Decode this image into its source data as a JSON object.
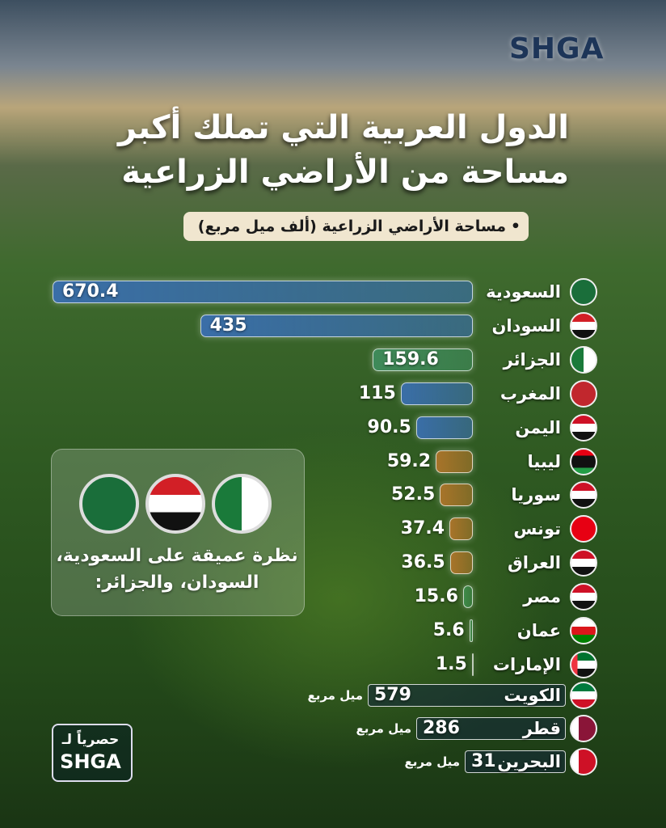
{
  "brand": "SHGA",
  "title": {
    "lines": [
      "الدول العربية التي تملك أكبر",
      "مساحة من الأراضي الزراعية"
    ]
  },
  "chart_data": {
    "type": "bar",
    "orientation": "horizontal",
    "subtitle": "مساحة الأراضي الزراعية (ألف ميل مربع)",
    "categories": [
      "السعودية",
      "السودان",
      "الجزائر",
      "المغرب",
      "اليمن",
      "ليبيا",
      "سوريا",
      "تونس",
      "العراق",
      "مصر",
      "عمان",
      "الإمارات"
    ],
    "values": [
      670.4,
      435,
      159.6,
      115,
      90.5,
      59.2,
      52.5,
      37.4,
      36.5,
      15.6,
      5.6,
      1.5
    ],
    "colors": [
      "#3a6ea8",
      "#3a6ea8",
      "#3f8a5a",
      "#3a6ea8",
      "#3a6ea8",
      "#a8742a",
      "#a8742a",
      "#a8742a",
      "#a8742a",
      "#3f8a4a",
      "#3f8a4a",
      "#3f8a4a"
    ]
  },
  "small_countries": {
    "unit": "ميل مربع",
    "rows": [
      {
        "name": "الكويت",
        "value": 579
      },
      {
        "name": "قطر",
        "value": 286
      },
      {
        "name": "البحرين",
        "value": 31
      }
    ]
  },
  "callout": {
    "lines": [
      "نظرة عميقة على السعودية،",
      "السودان، والجزائر:"
    ]
  },
  "footer": {
    "label": "حصرياً لـ",
    "brand": "SHGA"
  }
}
